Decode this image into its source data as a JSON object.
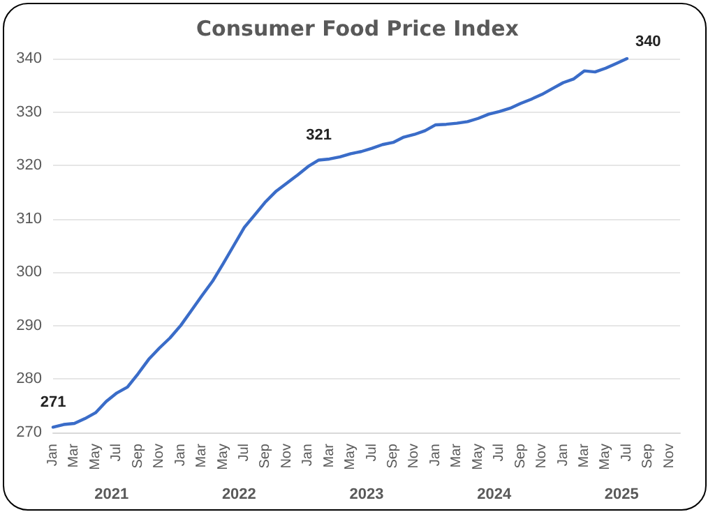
{
  "chart_data": {
    "type": "line",
    "title": "Consumer Food Price Index",
    "categories": [
      "Jan",
      null,
      "Mar",
      null,
      "May",
      null,
      "Jul",
      null,
      "Sep",
      null,
      "Nov",
      null,
      "Jan",
      null,
      "Mar",
      null,
      "May",
      null,
      "Jul",
      null,
      "Sep",
      null,
      "Nov",
      null,
      "Jan",
      null,
      "Mar",
      null,
      "May",
      null,
      "Jul",
      null,
      "Sep",
      null,
      "Nov",
      null,
      "Jan",
      null,
      "Mar",
      null,
      "May",
      null,
      "Jul",
      null,
      "Sep",
      null,
      "Nov",
      null,
      "Jan",
      null,
      "Mar",
      null,
      "May",
      null,
      "Jul",
      null,
      "Sep",
      null,
      "Nov",
      null
    ],
    "series": [
      {
        "color": "#3a6cc8",
        "values": [
          271,
          271.5,
          271.7,
          272.6,
          273.7,
          275.8,
          277.4,
          278.5,
          281,
          283.7,
          285.8,
          287.7,
          290,
          292.8,
          295.6,
          298.3,
          301.6,
          305,
          308.4,
          310.8,
          313.2,
          315.2,
          316.7,
          318.2,
          319.8,
          321,
          321.2,
          321.6,
          322.2,
          322.6,
          323.2,
          323.9,
          324.3,
          325.3,
          325.8,
          326.5,
          327.6,
          327.7,
          327.9,
          328.2,
          328.8,
          329.6,
          330.1,
          330.7,
          331.6,
          332.4,
          333.3,
          334.4,
          335.5,
          336.2,
          337.7,
          337.5,
          338.2,
          339.1,
          340,
          null,
          null,
          null,
          null,
          null
        ],
        "value_labels": [
          "271",
          null,
          null,
          null,
          null,
          null,
          null,
          null,
          null,
          null,
          null,
          null,
          null,
          null,
          null,
          null,
          null,
          null,
          null,
          null,
          null,
          null,
          null,
          null,
          null,
          "321",
          null,
          null,
          null,
          null,
          null,
          null,
          null,
          null,
          null,
          null,
          null,
          null,
          null,
          null,
          null,
          null,
          null,
          null,
          null,
          null,
          null,
          null,
          null,
          null,
          null,
          null,
          null,
          null,
          "340",
          null,
          null,
          null,
          null,
          null
        ]
      }
    ],
    "ylim": [
      270,
      340
    ],
    "yticks": [
      270,
      280,
      290,
      300,
      310,
      320,
      330,
      340
    ],
    "grid": "y",
    "marker": "none",
    "line_style": "solid",
    "annotations": [
      "2021",
      "2022",
      "2023",
      "2024",
      "2025"
    ]
  }
}
